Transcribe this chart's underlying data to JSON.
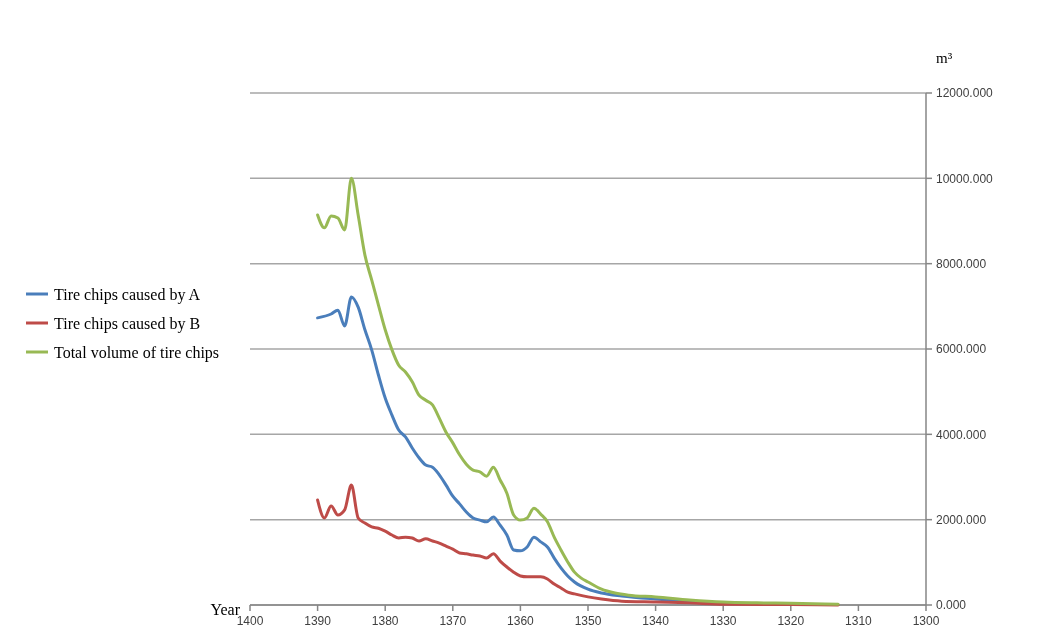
{
  "chart_data": {
    "type": "line",
    "xlabel": "Year",
    "ylabel": "m³",
    "xlim": [
      1400,
      1300
    ],
    "xticks": [
      1400,
      1390,
      1380,
      1370,
      1360,
      1350,
      1340,
      1330,
      1320,
      1310,
      1300
    ],
    "ylim": [
      0,
      12000
    ],
    "yticks": [
      {
        "value": 0,
        "label": "0.000"
      },
      {
        "value": 2000,
        "label": "2000.000"
      },
      {
        "value": 4000,
        "label": "4000.000"
      },
      {
        "value": 6000,
        "label": "6000.000"
      },
      {
        "value": 8000,
        "label": "8000.000"
      },
      {
        "value": 10000,
        "label": "10000.000"
      },
      {
        "value": 12000,
        "label": "12000.000"
      }
    ],
    "grid": "y",
    "legend": "left",
    "line_style": "solid",
    "marker": "none",
    "series": [
      {
        "name": "Tire chips caused by A",
        "color": "#4a7ebb",
        "x": [
          1390,
          1388,
          1387,
          1386,
          1385,
          1384,
          1383,
          1382,
          1381,
          1380,
          1379,
          1378,
          1377,
          1376,
          1375,
          1374,
          1373,
          1372,
          1371,
          1370,
          1369,
          1368,
          1367,
          1366,
          1365,
          1364,
          1363,
          1362,
          1361,
          1360,
          1359,
          1358,
          1357,
          1356,
          1355,
          1354,
          1353,
          1352,
          1350,
          1348,
          1345,
          1340,
          1335,
          1330
        ],
        "values": [
          6730,
          6820,
          6910,
          6540,
          7220,
          6980,
          6450,
          5980,
          5390,
          4850,
          4450,
          4100,
          3940,
          3680,
          3450,
          3280,
          3230,
          3050,
          2810,
          2550,
          2370,
          2180,
          2040,
          1990,
          1950,
          2060,
          1870,
          1640,
          1290,
          1270,
          1360,
          1590,
          1480,
          1360,
          1100,
          870,
          680,
          540,
          370,
          280,
          210,
          140,
          90,
          50
        ]
      },
      {
        "name": "Tire chips caused by B",
        "color": "#be4b48",
        "x": [
          1390,
          1389,
          1388,
          1387,
          1386,
          1385,
          1384,
          1383,
          1382,
          1381,
          1380,
          1379,
          1378,
          1377,
          1376,
          1375,
          1374,
          1373,
          1372,
          1371,
          1370,
          1369,
          1368,
          1367,
          1366,
          1365,
          1364,
          1363,
          1362,
          1361,
          1360,
          1359,
          1358,
          1357,
          1356,
          1355,
          1354,
          1353,
          1352,
          1350,
          1348,
          1345,
          1340,
          1335,
          1330,
          1320,
          1313
        ],
        "values": [
          2460,
          2040,
          2320,
          2110,
          2230,
          2810,
          2040,
          1920,
          1830,
          1800,
          1730,
          1640,
          1570,
          1590,
          1570,
          1500,
          1550,
          1500,
          1450,
          1380,
          1310,
          1220,
          1200,
          1170,
          1150,
          1100,
          1200,
          1030,
          890,
          770,
          680,
          660,
          660,
          660,
          610,
          490,
          400,
          300,
          260,
          190,
          140,
          90,
          70,
          50,
          20,
          10,
          0
        ]
      },
      {
        "name": "Total volume of tire chips",
        "color": "#98b954",
        "x": [
          1390,
          1389,
          1388,
          1387,
          1386,
          1385,
          1384,
          1383,
          1382,
          1381,
          1380,
          1379,
          1378,
          1377,
          1376,
          1375,
          1374,
          1373,
          1372,
          1371,
          1370,
          1369,
          1368,
          1367,
          1366,
          1365,
          1364,
          1363,
          1362,
          1361,
          1360,
          1359,
          1358,
          1357,
          1356,
          1355,
          1354,
          1353,
          1352,
          1351,
          1350,
          1348,
          1346,
          1344,
          1340,
          1335,
          1330,
          1325,
          1320,
          1313
        ],
        "values": [
          9140,
          8840,
          9120,
          9070,
          8790,
          10000,
          9140,
          8200,
          7620,
          7030,
          6450,
          5980,
          5620,
          5460,
          5230,
          4920,
          4800,
          4690,
          4380,
          4050,
          3800,
          3520,
          3300,
          3160,
          3120,
          3020,
          3230,
          2930,
          2620,
          2110,
          1990,
          2040,
          2270,
          2130,
          1950,
          1590,
          1290,
          1010,
          770,
          630,
          540,
          370,
          280,
          230,
          190,
          120,
          70,
          50,
          40,
          20
        ]
      }
    ]
  }
}
